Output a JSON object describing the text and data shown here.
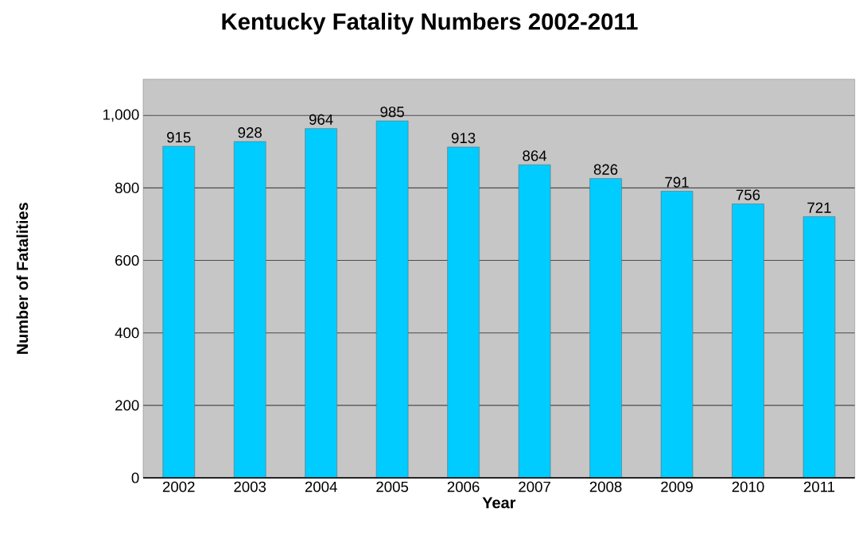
{
  "chart_data": {
    "type": "bar",
    "title": "Kentucky Fatality Numbers 2002-2011",
    "xlabel": "Year",
    "ylabel": "Number of Fatalities",
    "categories": [
      "2002",
      "2003",
      "2004",
      "2005",
      "2006",
      "2007",
      "2008",
      "2009",
      "2010",
      "2011"
    ],
    "values": [
      915,
      928,
      964,
      985,
      913,
      864,
      826,
      791,
      756,
      721
    ],
    "color": "#00ccff",
    "ylim": [
      0,
      1100
    ],
    "yticks": [
      0,
      200,
      400,
      600,
      800,
      {
        "value": 1000,
        "label": "1,000"
      }
    ],
    "grid": "y",
    "data_labels": true
  }
}
